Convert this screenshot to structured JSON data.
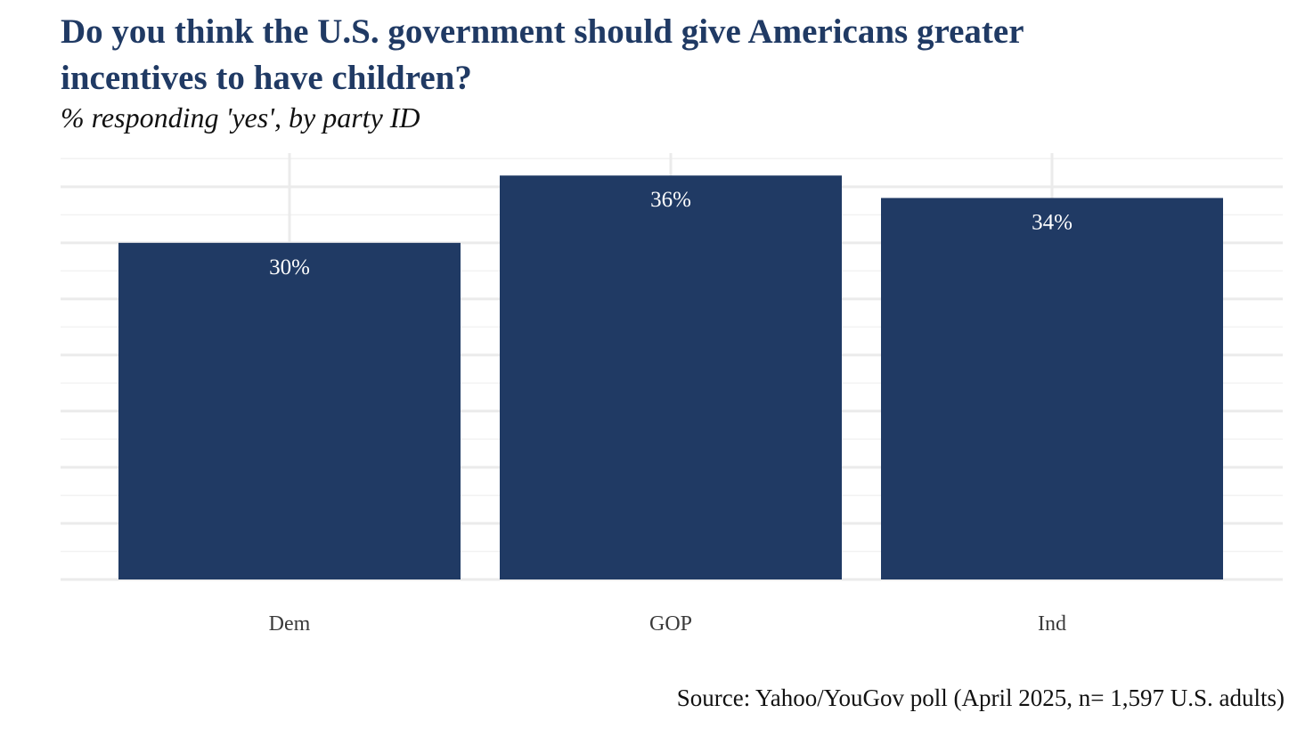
{
  "chart_data": {
    "type": "bar",
    "title": "Do you think the U.S. government should give Americans greater incentives to have children?",
    "subtitle": "% responding 'yes', by party ID",
    "categories": [
      "Dem",
      "GOP",
      "Ind"
    ],
    "values": [
      30,
      36,
      34
    ],
    "data_labels": [
      "30%",
      "36%",
      "34%"
    ],
    "xlabel": "",
    "ylabel": "",
    "ylim": [
      0,
      38
    ],
    "y_tick_labels_shown": false,
    "grid": true,
    "legend": "none",
    "bar_color": "#203a64",
    "source": "Source: Yahoo/YouGov poll (April 2025, n= 1,597 U.S. adults)"
  }
}
